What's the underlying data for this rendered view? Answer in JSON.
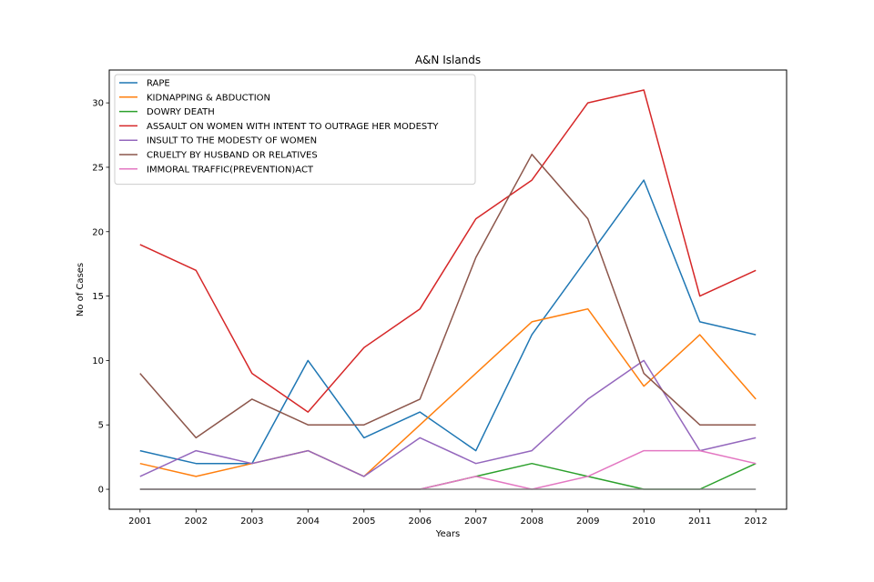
{
  "chart_data": {
    "type": "line",
    "title": "A&N Islands",
    "xlabel": "Years",
    "ylabel": "No of Cases",
    "categories": [
      "2001",
      "2002",
      "2003",
      "2004",
      "2005",
      "2006",
      "2007",
      "2008",
      "2009",
      "2010",
      "2011",
      "2012"
    ],
    "ylim": [
      -1.55,
      32.55
    ],
    "yticks": [
      0,
      5,
      10,
      15,
      20,
      25,
      30
    ],
    "grid": false,
    "legend_position": "top-left",
    "series": [
      {
        "name": "RAPE",
        "color": "#1f77b4",
        "values": [
          3,
          2,
          2,
          10,
          4,
          6,
          3,
          12,
          18,
          24,
          13,
          12
        ]
      },
      {
        "name": "KIDNAPPING & ABDUCTION",
        "color": "#ff7f0e",
        "values": [
          2,
          1,
          2,
          3,
          1,
          5,
          9,
          13,
          14,
          8,
          12,
          7
        ]
      },
      {
        "name": "DOWRY DEATH",
        "color": "#2ca02c",
        "values": [
          0,
          0,
          0,
          0,
          0,
          0,
          1,
          2,
          1,
          0,
          0,
          2
        ]
      },
      {
        "name": "ASSAULT ON WOMEN WITH INTENT TO OUTRAGE HER MODESTY",
        "color": "#d62728",
        "values": [
          19,
          17,
          9,
          6,
          11,
          14,
          21,
          24,
          30,
          31,
          15,
          17
        ]
      },
      {
        "name": "INSULT TO THE MODESTY OF WOMEN",
        "color": "#9467bd",
        "values": [
          1,
          3,
          2,
          3,
          1,
          4,
          2,
          3,
          7,
          10,
          3,
          4
        ]
      },
      {
        "name": "CRUELTY BY HUSBAND OR RELATIVES",
        "color": "#8c564b",
        "values": [
          9,
          4,
          7,
          5,
          5,
          7,
          18,
          26,
          21,
          9,
          5,
          5
        ]
      },
      {
        "name": "IMMORAL TRAFFIC(PREVENTION)ACT",
        "color": "#e377c2",
        "values": [
          0,
          0,
          0,
          0,
          0,
          0,
          1,
          0,
          1,
          3,
          3,
          2
        ]
      },
      {
        "name": "",
        "color": "#7f7f7f",
        "values": [
          0,
          0,
          0,
          0,
          0,
          0,
          0,
          0,
          0,
          0,
          0,
          0
        ]
      }
    ]
  }
}
